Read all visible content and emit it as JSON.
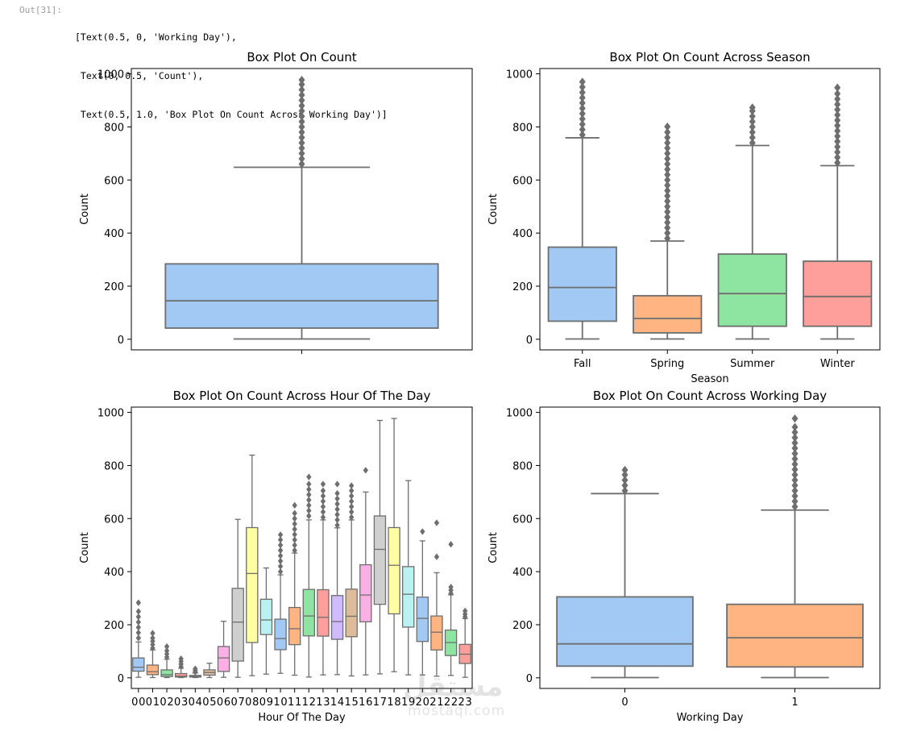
{
  "cell": {
    "prompt": "Out[31]:",
    "lines": [
      "[Text(0.5, 0, 'Working Day'),",
      " Text(0, 0.5, 'Count'),",
      " Text(0.5, 1.0, 'Box Plot On Count Across Working Day')]"
    ]
  },
  "watermark": {
    "ar": "مستقل",
    "en": "mostaqi.com"
  },
  "colors": {
    "blue": "#a1c9f4",
    "orange": "#ffb482",
    "green": "#8de5a1",
    "red": "#ff9f9b",
    "purple": "#d0bbff",
    "brown": "#debb9b",
    "pink": "#fab0e4",
    "gray": "#cfcfcf",
    "yellow": "#fffea3",
    "cyan": "#b9f2f0",
    "line": "#6e6e6e"
  },
  "chart_data": [
    {
      "type": "box",
      "title": "Box Plot On Count",
      "xlabel": "",
      "ylabel": "Count",
      "ylim": [
        -40,
        1020
      ],
      "yticks": [
        0,
        200,
        400,
        600,
        800,
        1000
      ],
      "categories": [
        ""
      ],
      "boxes": [
        {
          "q1": 42,
          "median": 145,
          "q3": 284,
          "whislo": 1,
          "whishi": 648,
          "fliers": [
            660,
            680,
            700,
            720,
            740,
            760,
            780,
            800,
            820,
            840,
            860,
            880,
            900,
            920,
            940,
            960,
            977
          ],
          "color": "#a1c9f4"
        }
      ]
    },
    {
      "type": "box",
      "title": "Box Plot On Count Across Season",
      "xlabel": "Season",
      "ylabel": "Count",
      "ylim": [
        -40,
        1020
      ],
      "yticks": [
        0,
        200,
        400,
        600,
        800,
        1000
      ],
      "categories": [
        "Fall",
        "Spring",
        "Summer",
        "Winter"
      ],
      "boxes": [
        {
          "q1": 68,
          "median": 195,
          "q3": 347,
          "whislo": 1,
          "whishi": 759,
          "fliers": [
            770,
            790,
            810,
            830,
            850,
            870,
            890,
            910,
            930,
            950,
            970
          ],
          "color": "#a1c9f4"
        },
        {
          "q1": 24,
          "median": 78,
          "q3": 164,
          "whislo": 1,
          "whishi": 370,
          "fliers": [
            380,
            400,
            420,
            440,
            460,
            480,
            500,
            520,
            540,
            560,
            580,
            600,
            620,
            640,
            660,
            680,
            700,
            720,
            740,
            760,
            780,
            801
          ],
          "color": "#ffb482"
        },
        {
          "q1": 49,
          "median": 172,
          "q3": 321,
          "whislo": 1,
          "whishi": 730,
          "fliers": [
            740,
            760,
            780,
            800,
            820,
            840,
            860,
            873
          ],
          "color": "#8de5a1"
        },
        {
          "q1": 49,
          "median": 161,
          "q3": 294,
          "whislo": 1,
          "whishi": 654,
          "fliers": [
            665,
            685,
            705,
            725,
            745,
            765,
            785,
            805,
            825,
            845,
            865,
            885,
            905,
            925,
            948
          ],
          "color": "#ff9f9b"
        }
      ]
    },
    {
      "type": "box",
      "title": "Box Plot On Count Across Hour Of The Day",
      "xlabel": "Hour Of The Day",
      "ylabel": "Count",
      "ylim": [
        -40,
        1020
      ],
      "yticks": [
        0,
        200,
        400,
        600,
        800,
        1000
      ],
      "categories": [
        "00",
        "01",
        "02",
        "03",
        "04",
        "05",
        "06",
        "07",
        "08",
        "09",
        "10",
        "11",
        "12",
        "13",
        "14",
        "15",
        "16",
        "17",
        "18",
        "19",
        "20",
        "21",
        "22",
        "23"
      ],
      "boxes": [
        {
          "q1": 25,
          "median": 40,
          "q3": 75,
          "whislo": 2,
          "whishi": 135,
          "fliers": [
            150,
            170,
            190,
            210,
            230,
            250,
            283
          ],
          "color": "#a1c9f4"
        },
        {
          "q1": 12,
          "median": 23,
          "q3": 48,
          "whislo": 1,
          "whishi": 105,
          "fliers": [
            112,
            125,
            138,
            150,
            168
          ],
          "color": "#ffb482"
        },
        {
          "q1": 5,
          "median": 12,
          "q3": 30,
          "whislo": 1,
          "whishi": 70,
          "fliers": [
            78,
            90,
            102,
            118
          ],
          "color": "#8de5a1"
        },
        {
          "q1": 3,
          "median": 6,
          "q3": 16,
          "whislo": 1,
          "whishi": 36,
          "fliers": [
            42,
            52,
            62,
            72
          ],
          "color": "#ff9f9b"
        },
        {
          "q1": 3,
          "median": 6,
          "q3": 9,
          "whislo": 1,
          "whishi": 18,
          "fliers": [
            22,
            28,
            34
          ],
          "color": "#d0bbff"
        },
        {
          "q1": 10,
          "median": 20,
          "q3": 30,
          "whislo": 1,
          "whishi": 55,
          "fliers": [],
          "color": "#debb9b"
        },
        {
          "q1": 24,
          "median": 75,
          "q3": 118,
          "whislo": 2,
          "whishi": 213,
          "fliers": [],
          "color": "#fab0e4"
        },
        {
          "q1": 63,
          "median": 210,
          "q3": 337,
          "whislo": 2,
          "whishi": 597,
          "fliers": [],
          "color": "#cfcfcf"
        },
        {
          "q1": 133,
          "median": 393,
          "q3": 566,
          "whislo": 8,
          "whishi": 839,
          "fliers": [],
          "color": "#fffea3"
        },
        {
          "q1": 163,
          "median": 218,
          "q3": 296,
          "whislo": 14,
          "whishi": 414,
          "fliers": [],
          "color": "#b9f2f0"
        },
        {
          "q1": 106,
          "median": 148,
          "q3": 221,
          "whislo": 17,
          "whishi": 388,
          "fliers": [
            400,
            420,
            440,
            460,
            480,
            500,
            520,
            539
          ],
          "color": "#a1c9f4"
        },
        {
          "q1": 125,
          "median": 185,
          "q3": 265,
          "whislo": 10,
          "whishi": 470,
          "fliers": [
            480,
            500,
            520,
            540,
            560,
            580,
            600,
            620,
            650
          ],
          "color": "#ffb482"
        },
        {
          "q1": 158,
          "median": 233,
          "q3": 333,
          "whislo": 3,
          "whishi": 595,
          "fliers": [
            610,
            630,
            650,
            670,
            690,
            710,
            730,
            757
          ],
          "color": "#8de5a1"
        },
        {
          "q1": 157,
          "median": 228,
          "q3": 332,
          "whislo": 11,
          "whishi": 595,
          "fliers": [
            605,
            625,
            645,
            665,
            685,
            705,
            730
          ],
          "color": "#ff9f9b"
        },
        {
          "q1": 145,
          "median": 212,
          "q3": 310,
          "whislo": 12,
          "whishi": 565,
          "fliers": [
            575,
            595,
            615,
            635,
            655,
            675,
            695,
            730
          ],
          "color": "#d0bbff"
        },
        {
          "q1": 155,
          "median": 232,
          "q3": 334,
          "whislo": 7,
          "whishi": 595,
          "fliers": [
            605,
            625,
            645,
            665,
            685,
            705,
            724
          ],
          "color": "#debb9b"
        },
        {
          "q1": 211,
          "median": 312,
          "q3": 426,
          "whislo": 11,
          "whishi": 700,
          "fliers": [
            782
          ],
          "color": "#fab0e4"
        },
        {
          "q1": 277,
          "median": 484,
          "q3": 610,
          "whislo": 15,
          "whishi": 970,
          "fliers": [],
          "color": "#cfcfcf"
        },
        {
          "q1": 241,
          "median": 424,
          "q3": 566,
          "whislo": 23,
          "whishi": 977,
          "fliers": [],
          "color": "#fffea3"
        },
        {
          "q1": 191,
          "median": 315,
          "q3": 419,
          "whislo": 11,
          "whishi": 743,
          "fliers": [],
          "color": "#b9f2f0"
        },
        {
          "q1": 137,
          "median": 224,
          "q3": 304,
          "whislo": 11,
          "whishi": 516,
          "fliers": [
            551
          ],
          "color": "#a1c9f4"
        },
        {
          "q1": 105,
          "median": 172,
          "q3": 233,
          "whislo": 6,
          "whishi": 396,
          "fliers": [
            456,
            584
          ],
          "color": "#ffb482"
        },
        {
          "q1": 84,
          "median": 133,
          "q3": 180,
          "whislo": 9,
          "whishi": 313,
          "fliers": [
            318,
            330,
            342,
            503
          ],
          "color": "#8de5a1"
        },
        {
          "q1": 54,
          "median": 89,
          "q3": 126,
          "whislo": 2,
          "whishi": 223,
          "fliers": [
            230,
            240,
            252
          ],
          "color": "#ff9f9b"
        }
      ]
    },
    {
      "type": "box",
      "title": "Box Plot On Count Across Working Day",
      "xlabel": "Working Day",
      "ylabel": "Count",
      "ylim": [
        -40,
        1020
      ],
      "yticks": [
        0,
        200,
        400,
        600,
        800,
        1000
      ],
      "categories": [
        "0",
        "1"
      ],
      "boxes": [
        {
          "q1": 44,
          "median": 128,
          "q3": 305,
          "whislo": 1,
          "whishi": 694,
          "fliers": [
            705,
            725,
            745,
            765,
            783
          ],
          "color": "#a1c9f4"
        },
        {
          "q1": 41,
          "median": 151,
          "q3": 277,
          "whislo": 1,
          "whishi": 632,
          "fliers": [
            645,
            665,
            685,
            705,
            725,
            745,
            765,
            785,
            805,
            825,
            845,
            865,
            885,
            905,
            925,
            945,
            977
          ],
          "color": "#ffb482"
        }
      ]
    }
  ]
}
